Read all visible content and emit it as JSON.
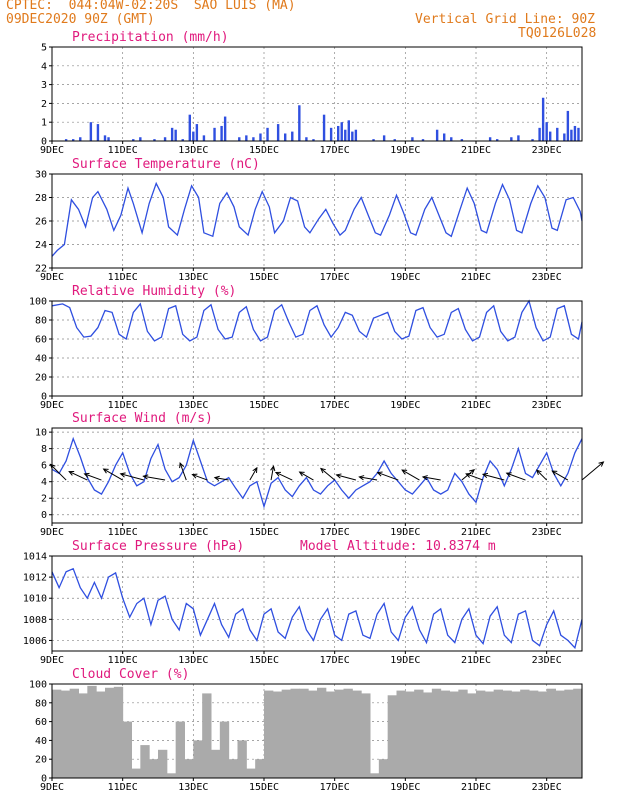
{
  "header": {
    "line1": "CPTEC:  044:04W-02:20S  SAO LUIS (MA)",
    "line2": "09DEC2020 90Z (GMT)",
    "grid_note": "Vertical Grid Line: 90Z",
    "code": "TQ0126L028"
  },
  "colors": {
    "header": "#e07a1c",
    "title": "#e0197d",
    "series": "#2f4fe0",
    "cloud": "#aaaaaa",
    "wind": "#000000"
  },
  "chart_data": [
    {
      "type": "bar",
      "title": "Precipitation (mm/h)",
      "x_range_days": [
        9,
        24
      ],
      "ylim": [
        0,
        5
      ],
      "yticks": [
        0,
        1,
        2,
        3,
        4,
        5
      ],
      "xticks": [
        "9DEC",
        "11DEC",
        "13DEC",
        "15DEC",
        "17DEC",
        "19DEC",
        "21DEC",
        "23DEC"
      ],
      "grid": true,
      "x": [
        9.4,
        9.6,
        9.8,
        10.1,
        10.3,
        10.5,
        10.6,
        11.3,
        11.5,
        11.9,
        12.2,
        12.4,
        12.5,
        12.7,
        12.9,
        13.0,
        13.1,
        13.3,
        13.6,
        13.8,
        13.9,
        14.3,
        14.5,
        14.7,
        14.9,
        15.1,
        15.4,
        15.6,
        15.8,
        16.0,
        16.2,
        16.4,
        16.7,
        16.9,
        17.1,
        17.2,
        17.3,
        17.4,
        17.5,
        17.6,
        18.1,
        18.4,
        18.7,
        19.2,
        19.5,
        19.9,
        20.1,
        20.3,
        20.6,
        21.4,
        21.6,
        22.0,
        22.2,
        22.6,
        22.8,
        22.9,
        23.0,
        23.1,
        23.3,
        23.5,
        23.6,
        23.7,
        23.8,
        23.9
      ],
      "values": [
        0.1,
        0.1,
        0.2,
        1.0,
        0.9,
        0.3,
        0.2,
        0.1,
        0.2,
        0.1,
        0.2,
        0.7,
        0.6,
        0.1,
        1.4,
        0.5,
        0.9,
        0.3,
        0.7,
        0.8,
        1.3,
        0.2,
        0.3,
        0.2,
        0.4,
        0.7,
        0.9,
        0.4,
        0.5,
        1.9,
        0.2,
        0.1,
        1.4,
        0.7,
        0.8,
        1.0,
        0.6,
        1.1,
        0.5,
        0.6,
        0.1,
        0.3,
        0.1,
        0.2,
        0.1,
        0.6,
        0.4,
        0.2,
        0.1,
        0.2,
        0.1,
        0.2,
        0.3,
        0.1,
        0.7,
        2.3,
        1.0,
        0.5,
        0.7,
        0.4,
        1.6,
        0.6,
        0.8,
        0.7
      ]
    },
    {
      "type": "line",
      "title": "Surface Temperature (nC)",
      "x_range_days": [
        9,
        24
      ],
      "ylim": [
        22,
        30
      ],
      "yticks": [
        22,
        24,
        26,
        28,
        30
      ],
      "xticks": [
        "9DEC",
        "11DEC",
        "13DEC",
        "15DEC",
        "17DEC",
        "19DEC",
        "21DEC",
        "23DEC"
      ],
      "grid": true,
      "x": [
        9.0,
        9.15,
        9.35,
        9.55,
        9.75,
        9.95,
        10.15,
        10.3,
        10.55,
        10.75,
        10.95,
        11.15,
        11.3,
        11.55,
        11.75,
        11.95,
        12.15,
        12.3,
        12.55,
        12.75,
        12.95,
        13.15,
        13.3,
        13.55,
        13.75,
        13.95,
        14.15,
        14.3,
        14.55,
        14.75,
        14.95,
        15.15,
        15.3,
        15.55,
        15.75,
        15.95,
        16.15,
        16.3,
        16.55,
        16.75,
        16.95,
        17.15,
        17.3,
        17.55,
        17.75,
        17.95,
        18.15,
        18.3,
        18.55,
        18.75,
        18.95,
        19.15,
        19.3,
        19.55,
        19.75,
        19.95,
        20.15,
        20.3,
        20.55,
        20.75,
        20.95,
        21.15,
        21.3,
        21.55,
        21.75,
        21.95,
        22.15,
        22.3,
        22.55,
        22.75,
        22.95,
        23.15,
        23.3,
        23.55,
        23.75,
        23.95,
        24.0
      ],
      "values": [
        23.0,
        23.5,
        24.0,
        27.8,
        27.0,
        25.5,
        28.0,
        28.5,
        27.0,
        25.2,
        26.5,
        28.8,
        27.5,
        25.0,
        27.5,
        29.2,
        28.0,
        25.5,
        24.8,
        27.0,
        29.0,
        28.0,
        25.0,
        24.7,
        27.5,
        28.4,
        27.2,
        25.5,
        24.8,
        27.0,
        28.5,
        27.2,
        25.0,
        26.0,
        28.0,
        27.7,
        25.5,
        25.0,
        26.2,
        27.0,
        25.8,
        24.8,
        25.2,
        27.0,
        28.0,
        26.5,
        25.0,
        24.8,
        26.5,
        28.2,
        26.7,
        25.0,
        24.8,
        27.0,
        28.0,
        26.5,
        25.0,
        24.7,
        27.0,
        28.8,
        27.5,
        25.2,
        25.0,
        27.5,
        29.1,
        27.8,
        25.2,
        25.0,
        27.5,
        29.0,
        28.0,
        25.4,
        25.2,
        27.8,
        28.0,
        26.8,
        26.0
      ]
    },
    {
      "type": "line",
      "title": "Relative Humidity (%)",
      "x_range_days": [
        9,
        24
      ],
      "ylim": [
        0,
        100
      ],
      "yticks": [
        0,
        20,
        40,
        60,
        80,
        100
      ],
      "xticks": [
        "9DEC",
        "11DEC",
        "13DEC",
        "15DEC",
        "17DEC",
        "19DEC",
        "21DEC",
        "23DEC"
      ],
      "grid": true,
      "x": [
        9.0,
        9.3,
        9.5,
        9.7,
        9.9,
        10.1,
        10.3,
        10.5,
        10.7,
        10.9,
        11.1,
        11.3,
        11.5,
        11.7,
        11.9,
        12.1,
        12.3,
        12.5,
        12.7,
        12.9,
        13.1,
        13.3,
        13.5,
        13.7,
        13.9,
        14.1,
        14.3,
        14.5,
        14.7,
        14.9,
        15.1,
        15.3,
        15.5,
        15.7,
        15.9,
        16.1,
        16.3,
        16.5,
        16.7,
        16.9,
        17.1,
        17.3,
        17.5,
        17.7,
        17.9,
        18.1,
        18.3,
        18.5,
        18.7,
        18.9,
        19.1,
        19.3,
        19.5,
        19.7,
        19.9,
        20.1,
        20.3,
        20.5,
        20.7,
        20.9,
        21.1,
        21.3,
        21.5,
        21.7,
        21.9,
        22.1,
        22.3,
        22.5,
        22.7,
        22.9,
        23.1,
        23.3,
        23.5,
        23.7,
        23.9,
        24.0
      ],
      "values": [
        95,
        97,
        93,
        72,
        62,
        63,
        72,
        90,
        88,
        65,
        60,
        88,
        97,
        68,
        58,
        62,
        92,
        95,
        65,
        58,
        62,
        90,
        96,
        70,
        60,
        62,
        88,
        94,
        70,
        58,
        62,
        90,
        96,
        78,
        62,
        65,
        90,
        95,
        75,
        62,
        72,
        88,
        85,
        68,
        62,
        82,
        85,
        88,
        68,
        60,
        63,
        90,
        93,
        72,
        62,
        65,
        88,
        92,
        70,
        58,
        62,
        88,
        95,
        68,
        58,
        62,
        88,
        100,
        72,
        58,
        62,
        92,
        95,
        65,
        60,
        78
      ]
    },
    {
      "type": "line",
      "title": "Surface Wind (m/s)",
      "x_range_days": [
        9,
        24
      ],
      "ylim": [
        -1,
        10.5
      ],
      "yticks": [
        0,
        2,
        4,
        6,
        8,
        10
      ],
      "xticks": [
        "9DEC",
        "11DEC",
        "13DEC",
        "15DEC",
        "17DEC",
        "19DEC",
        "21DEC",
        "23DEC"
      ],
      "grid": true,
      "x": [
        9.0,
        9.2,
        9.4,
        9.6,
        9.8,
        10.0,
        10.2,
        10.4,
        10.6,
        10.8,
        11.0,
        11.2,
        11.4,
        11.6,
        11.8,
        12.0,
        12.2,
        12.4,
        12.6,
        12.8,
        13.0,
        13.2,
        13.4,
        13.6,
        13.8,
        14.0,
        14.2,
        14.4,
        14.6,
        14.8,
        15.0,
        15.2,
        15.4,
        15.6,
        15.8,
        16.0,
        16.2,
        16.4,
        16.6,
        16.8,
        17.0,
        17.2,
        17.4,
        17.6,
        17.8,
        18.0,
        18.2,
        18.4,
        18.6,
        18.8,
        19.0,
        19.2,
        19.4,
        19.6,
        19.8,
        20.0,
        20.2,
        20.4,
        20.6,
        20.8,
        21.0,
        21.2,
        21.4,
        21.6,
        21.8,
        22.0,
        22.2,
        22.4,
        22.6,
        22.8,
        23.0,
        23.2,
        23.4,
        23.6,
        23.8,
        24.0
      ],
      "values": [
        5.5,
        5.0,
        6.5,
        9.2,
        7.0,
        4.5,
        3.0,
        2.5,
        4.0,
        6.0,
        7.5,
        5.0,
        3.5,
        4.0,
        6.8,
        8.5,
        5.5,
        4.0,
        4.5,
        6.0,
        9.0,
        6.5,
        4.0,
        3.5,
        4.0,
        4.5,
        3.2,
        2.0,
        3.5,
        4.0,
        1.0,
        3.8,
        4.5,
        3.0,
        2.2,
        3.5,
        4.5,
        3.0,
        2.5,
        3.5,
        4.2,
        3.0,
        2.0,
        3.0,
        3.5,
        4.0,
        5.0,
        6.5,
        5.0,
        4.0,
        3.0,
        2.5,
        3.5,
        4.5,
        3.0,
        2.5,
        3.0,
        5.0,
        4.0,
        2.5,
        1.5,
        4.5,
        6.5,
        5.5,
        3.5,
        5.5,
        8.0,
        5.0,
        4.5,
        6.0,
        7.5,
        5.0,
        3.5,
        5.0,
        7.5,
        9.2
      ],
      "arrows": {
        "x": [
          9.4,
          10.0,
          10.4,
          11.0,
          11.6,
          12.2,
          12.8,
          13.4,
          14.0,
          14.6,
          15.2,
          15.8,
          16.4,
          17.0,
          17.6,
          18.2,
          18.8,
          19.4,
          20.0,
          20.6,
          21.2,
          21.8,
          22.4,
          23.0,
          23.6,
          24.0
        ],
        "dir_deg": [
          135,
          155,
          160,
          150,
          165,
          170,
          110,
          160,
          170,
          60,
          80,
          155,
          150,
          140,
          165,
          170,
          160,
          150,
          170,
          40,
          160,
          165,
          160,
          135,
          150,
          40
        ],
        "len": [
          22,
          20,
          18,
          22,
          24,
          22,
          18,
          16,
          14,
          14,
          14,
          18,
          16,
          18,
          20,
          18,
          22,
          20,
          18,
          16,
          18,
          22,
          20,
          14,
          18,
          28
        ]
      }
    },
    {
      "type": "line",
      "title": "Surface Pressure (hPa)",
      "annotation": "Model Altitude: 10.8374 m",
      "x_range_days": [
        9,
        24
      ],
      "ylim": [
        1005,
        1014
      ],
      "yticks": [
        1006,
        1008,
        1010,
        1012,
        1014
      ],
      "xticks": [
        "9DEC",
        "11DEC",
        "13DEC",
        "15DEC",
        "17DEC",
        "19DEC",
        "21DEC",
        "23DEC"
      ],
      "grid": true,
      "x": [
        9.0,
        9.2,
        9.4,
        9.6,
        9.8,
        10.0,
        10.2,
        10.4,
        10.6,
        10.8,
        11.0,
        11.2,
        11.4,
        11.6,
        11.8,
        12.0,
        12.2,
        12.4,
        12.6,
        12.8,
        13.0,
        13.2,
        13.4,
        13.6,
        13.8,
        14.0,
        14.2,
        14.4,
        14.6,
        14.8,
        15.0,
        15.2,
        15.4,
        15.6,
        15.8,
        16.0,
        16.2,
        16.4,
        16.6,
        16.8,
        17.0,
        17.2,
        17.4,
        17.6,
        17.8,
        18.0,
        18.2,
        18.4,
        18.6,
        18.8,
        19.0,
        19.2,
        19.4,
        19.6,
        19.8,
        20.0,
        20.2,
        20.4,
        20.6,
        20.8,
        21.0,
        21.2,
        21.4,
        21.6,
        21.8,
        22.0,
        22.2,
        22.4,
        22.6,
        22.8,
        23.0,
        23.2,
        23.4,
        23.6,
        23.8,
        24.0
      ],
      "values": [
        1012.5,
        1011.0,
        1012.5,
        1012.8,
        1011.0,
        1010.0,
        1011.5,
        1010.0,
        1012.0,
        1012.4,
        1010.0,
        1008.2,
        1009.5,
        1010.0,
        1007.5,
        1009.8,
        1010.2,
        1008.0,
        1007.0,
        1009.5,
        1009.0,
        1006.5,
        1008.0,
        1009.5,
        1007.5,
        1006.3,
        1008.5,
        1009.0,
        1007.0,
        1006.0,
        1008.5,
        1009.0,
        1006.8,
        1006.2,
        1008.2,
        1009.2,
        1007.0,
        1006.0,
        1008.0,
        1009.0,
        1006.5,
        1006.0,
        1008.5,
        1008.8,
        1006.5,
        1006.2,
        1008.5,
        1009.5,
        1006.8,
        1006.0,
        1008.2,
        1009.2,
        1007.0,
        1005.8,
        1008.5,
        1009.0,
        1006.5,
        1005.8,
        1008.0,
        1009.0,
        1006.5,
        1005.7,
        1008.3,
        1009.2,
        1006.5,
        1005.8,
        1008.5,
        1008.8,
        1006.0,
        1005.5,
        1007.5,
        1008.8,
        1006.5,
        1006.0,
        1005.3,
        1008.0
      ]
    },
    {
      "type": "bar",
      "title": "Cloud Cover (%)",
      "x_range_days": [
        9,
        24
      ],
      "ylim": [
        0,
        100
      ],
      "yticks": [
        0,
        20,
        40,
        60,
        80,
        100
      ],
      "xticks": [
        "9DEC",
        "11DEC",
        "13DEC",
        "15DEC",
        "17DEC",
        "19DEC",
        "21DEC",
        "23DEC"
      ],
      "grid": true,
      "x": [
        9.0,
        9.25,
        9.5,
        9.75,
        10.0,
        10.25,
        10.5,
        10.75,
        11.0,
        11.25,
        11.5,
        11.75,
        12.0,
        12.25,
        12.5,
        12.75,
        13.0,
        13.25,
        13.5,
        13.75,
        14.0,
        14.25,
        14.5,
        14.75,
        15.0,
        15.25,
        15.5,
        15.75,
        16.0,
        16.25,
        16.5,
        16.75,
        17.0,
        17.25,
        17.5,
        17.75,
        18.0,
        18.25,
        18.5,
        18.75,
        19.0,
        19.25,
        19.5,
        19.75,
        20.0,
        20.25,
        20.5,
        20.75,
        21.0,
        21.25,
        21.5,
        21.75,
        22.0,
        22.25,
        22.5,
        22.75,
        23.0,
        23.25,
        23.5,
        23.75
      ],
      "values": [
        94,
        93,
        95,
        90,
        98,
        92,
        96,
        97,
        60,
        10,
        35,
        20,
        30,
        5,
        60,
        20,
        40,
        90,
        30,
        60,
        20,
        40,
        10,
        20,
        93,
        92,
        94,
        95,
        95,
        93,
        96,
        92,
        94,
        95,
        93,
        90,
        5,
        20,
        88,
        93,
        92,
        94,
        91,
        95,
        93,
        92,
        94,
        90,
        93,
        92,
        94,
        93,
        92,
        94,
        93,
        92,
        95,
        93,
        94,
        95
      ]
    }
  ]
}
